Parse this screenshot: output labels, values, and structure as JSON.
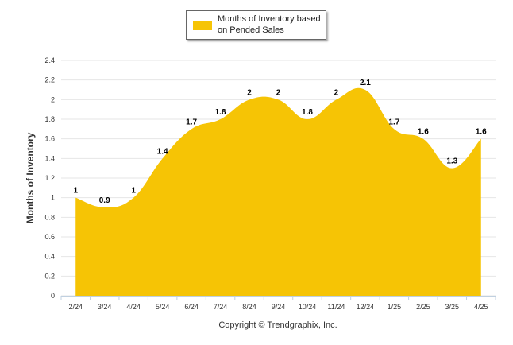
{
  "chart_data": {
    "type": "area",
    "categories": [
      "2/24",
      "3/24",
      "4/24",
      "5/24",
      "6/24",
      "7/24",
      "8/24",
      "9/24",
      "10/24",
      "11/24",
      "12/24",
      "1/25",
      "2/25",
      "3/25",
      "4/25"
    ],
    "series": [
      {
        "name": "Months of Inventory based on Pended Sales",
        "values": [
          1,
          0.9,
          1,
          1.4,
          1.7,
          1.8,
          2,
          2,
          1.8,
          2,
          2.1,
          1.7,
          1.6,
          1.3,
          1.6
        ],
        "data_labels": [
          "1",
          "0.9",
          "1",
          "1.4",
          "1.7",
          "1.8",
          "2",
          "2",
          "1.8",
          "2",
          "2.1",
          "1.7",
          "1.6",
          "1.3",
          "1.6"
        ]
      }
    ],
    "ylabel": "Months of Inventory",
    "xlabel": "",
    "ylim": [
      0,
      2.4
    ],
    "yticks": [
      "0",
      "0.2",
      "0.4",
      "0.6",
      "0.8",
      "1",
      "1.2",
      "1.4",
      "1.6",
      "1.8",
      "2",
      "2.2",
      "2.4"
    ],
    "grid": true,
    "legend_position": "top-center",
    "colors": {
      "series": "#F6C405",
      "grid": "#e6e6e6",
      "axis": "#c0d0e0"
    }
  },
  "footer": {
    "copyright": "Copyright © Trendgraphix, Inc."
  }
}
